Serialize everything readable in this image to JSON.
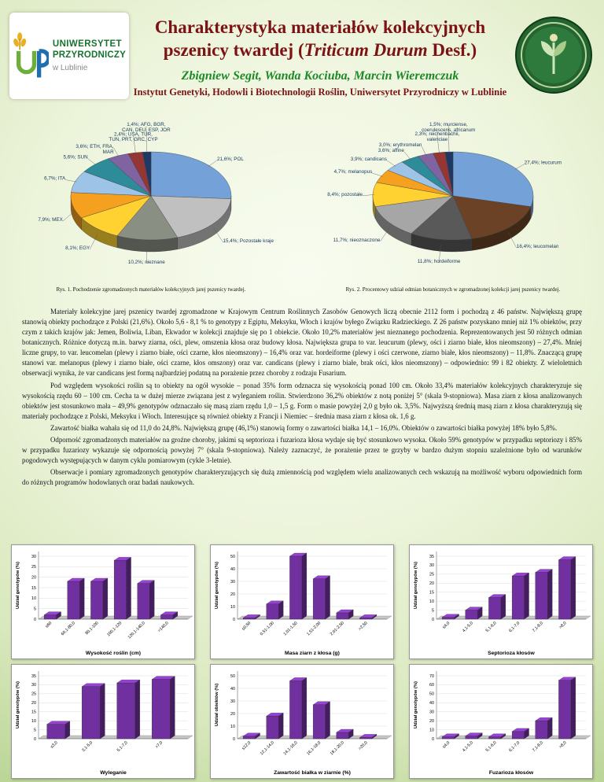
{
  "header": {
    "title_line1": "Charakterystyka materiałów kolekcyjnych",
    "title_line2_pre": "pszenicy twardej (",
    "title_line2_italic": "Triticum Durum",
    "title_line2_post": " Desf.)",
    "authors": "Zbigniew Segit, Wanda Kociuba, Marcin Wieremczuk",
    "institute": "Instytut Genetyki, Hodowli i Biotechnologii Roślin, Uniwersytet Przyrodniczy w Lublinie",
    "logo_left": {
      "line1": "UNIWERSYTET",
      "line2": "PRZYRODNICZY",
      "line3": "w Lublinie"
    }
  },
  "body": {
    "paragraphs": [
      "Materiały kolekcyjne jarej pszenicy twardej zgromadzone w Krajowym Centrum Roślinnych Zasobów Genowych liczą obecnie 2112 form i pochodzą z 46 państw. Największą grupę stanowią obiekty pochodzące z Polski (21,6%). Około 5,6 - 8,1 % to genotypy z Egiptu, Meksyku, Włoch i krajów byłego Związku Radzieckiego. Z 26 państw pozyskano mniej niż 1% obiektów, przy czym z takich krajów jak: Jemen, Boliwia, Liban, Ekwador w kolekcji znajduje się po 1 obiekcie. Około 10,2% materiałów jest nieznanego pochodzenia. Reprezentowanych jest 50 różnych odmian botanicznych. Różnice dotyczą m.in. barwy ziarna, ości, plew, omszenia kłosa oraz budowy kłosa. Największa grupa to var. leucurum (plewy, ości i ziarno białe, kłos nieomszony) – 27,4%. Mniej liczne grupy, to var. leucomelan (plewy i ziarno białe, ości czarne, kłos nieomszony) – 16,4% oraz var. hordeiforme (plewy i ości czerwone, ziarno białe, kłos nieomszony) – 11,8%. Znaczącą grupę stanowi var. melanopus (plewy i ziarno białe, ości czarne, kłos omszony) oraz var. candicans (plewy i ziarno białe, brak ości, kłos nieomszony) – odpowiednio: 99 i 82 obiekty. Z wieloletnich obserwacji wynika, że var candicans jest formą najbardziej podatną na porażenie przez choroby z rodzaju Fusarium.",
      "Pod względem wysokości roślin są to obiekty na ogół wysokie – ponad 35% form odznacza się wysokością ponad 100 cm. Około 33,4% materiałów kolekcyjnych charakteryzuje się wysokością rzędu 60 – 100 cm. Cecha ta w dużej mierze związana jest z wyleganiem roślin. Stwierdzono 36,2% obiektów z notą poniżej 5° (skala 9-stopniowa). Masa ziarn z kłosa analizowanych obiektów jest stosunkowo mała – 49,9% genotypów odznaczało się masą ziarn rzędu 1,0 – 1,5 g. Form o masie powyżej 2,0 g było ok. 3,5%. Najwyższą średnią masą ziarn z kłosa charakteryzują się materiały pochodzące z Polski, Meksyku i Włoch. Interesujące są również obiekty z Francji i Niemiec – średnia masa ziarn z kłosa ok. 1,6 g.",
      "Zawartość białka wahała się od 11,0 do 24,8%. Największą grupę (46,1%) stanowią formy o zawartości białka 14,1 – 16,0%. Obiektów o zawartości białka powyżej 18% było 5,8%.",
      "Odporność zgromadzonych materiałów na groźne choroby, jakimi są septorioza i fuzarioza kłosa wydaje się być stosunkowo wysoka. Około 59% genotypów w przypadku septoriozy i 85% w przypadku fuzariozy wykazuje się odpornością powyżej 7° (skala 9-stopniowa). Należy zaznaczyć, że porażenie przez te grzyby w bardzo dużym stopniu uzależnione było od warunków pogodowych występujących w danym cyklu pomiarowym (cykle 3-letnie).",
      "Obserwacje i pomiary zgromadzonych genotypów charakteryzujących się dużą zmiennością pod względem wielu analizowanych cech wskazują na możliwość wyboru odpowiednich form do różnych programów hodowlanych oraz badań naukowych."
    ]
  },
  "chart_data": [
    {
      "id": "pie-origin",
      "type": "pie",
      "caption": "Rys. 1. Pochodzenie zgromadzonych materiałów kolekcyjnych jarej pszenicy twardej.",
      "slices": [
        {
          "label": "21,6%; POL",
          "value": 21.6,
          "color": "#74a1d8"
        },
        {
          "label": "15,4%; Pozostałe kraje",
          "value": 15.4,
          "color": "#c0c0c0"
        },
        {
          "label": "10,2%; nieznane",
          "value": 10.2,
          "color": "#8a8f84"
        },
        {
          "label": "8,1%; EGY",
          "value": 8.1,
          "color": "#ffd232"
        },
        {
          "label": "7,9%; MEX",
          "value": 7.9,
          "color": "#f5a01e"
        },
        {
          "label": "6,7%; ITA",
          "value": 6.7,
          "color": "#9dc3e6"
        },
        {
          "label": "5,6%; SUN",
          "value": 5.6,
          "color": "#2e8b9a"
        },
        {
          "label": [
            "3,6%; ETH, FRA,",
            "MAR"
          ],
          "value": 3.6,
          "color": "#8064a2"
        },
        {
          "label": [
            "2,4%; USA, TUR,",
            "TUN, PRT, GRC, CYP"
          ],
          "value": 2.4,
          "color": "#943634"
        },
        {
          "label": [
            "1,4%; AFG, BGR,",
            "CAN, DEU, ESP, JOR"
          ],
          "value": 1.4,
          "color": "#1f3864"
        }
      ]
    },
    {
      "id": "pie-botanical",
      "type": "pie",
      "caption": "Rys. 2. Procentowy udział odmian botanicznych w zgromadzonej kolekcji jarej pszenicy twardej.",
      "slices": [
        {
          "label": "27,4%; leucurum",
          "value": 27.4,
          "color": "#74a1d8"
        },
        {
          "label": "16,4%; leucomelan",
          "value": 16.4,
          "color": "#6b4226"
        },
        {
          "label": "11,8%; hordeiforme",
          "value": 11.8,
          "color": "#595959"
        },
        {
          "label": "11,7%; nieoznaczone",
          "value": 11.7,
          "color": "#a6a6a6"
        },
        {
          "label": "8,4%; pozostałe",
          "value": 8.4,
          "color": "#ffd232"
        },
        {
          "label": "4,7%; melanopus",
          "value": 4.7,
          "color": "#f5a01e"
        },
        {
          "label": "3,9%; candicans",
          "value": 3.9,
          "color": "#9dc3e6"
        },
        {
          "label": "3,6%; affine",
          "value": 3.6,
          "color": "#2e8b9a"
        },
        {
          "label": "3,0%; erythromelan",
          "value": 3.0,
          "color": "#8064a2"
        },
        {
          "label": [
            "2,3%; reichenbachii,",
            "valenciae"
          ],
          "value": 2.3,
          "color": "#943634"
        },
        {
          "label": [
            "1,5%; murciense,",
            "coerulescens, africanum"
          ],
          "value": 1.5,
          "color": "#1f3864"
        }
      ]
    },
    {
      "id": "bar-height",
      "type": "bar",
      "ylabel": "Udział genotypów (%)",
      "xlabel": "Wysokość roślin (cm)",
      "ymax": 30,
      "ystep": 5,
      "bar_color": "#7030a0",
      "categories": [
        "≤60",
        "60,1-80,0",
        "80,1-100",
        "100,1-120",
        "120,1-140,0",
        ">140,0"
      ],
      "values": [
        2,
        18,
        18,
        28,
        17,
        2
      ]
    },
    {
      "id": "bar-mass",
      "type": "bar",
      "ylabel": "Udział genotypów (%)",
      "xlabel": "Masa ziarn z kłosa (g)",
      "ymax": 50,
      "ystep": 10,
      "bar_color": "#7030a0",
      "categories": [
        "≤0,50",
        "0,51-1,00",
        "1,01-1,50",
        "1,51-2,00",
        "2,01-2,50",
        ">2,50"
      ],
      "values": [
        1,
        12,
        50,
        32,
        5,
        1
      ]
    },
    {
      "id": "bar-septoria",
      "type": "bar",
      "ylabel": "Udział genotypów (%)",
      "xlabel": "Septorioza kłosów",
      "ymax": 35,
      "ystep": 5,
      "bar_color": "#7030a0",
      "categories": [
        "≤4,0",
        "4,1-5,0",
        "5,1-6,0",
        "6,1-7,0",
        "7,1-8,0",
        ">8,0"
      ],
      "values": [
        1,
        5,
        12,
        24,
        26,
        33
      ]
    },
    {
      "id": "bar-lodging",
      "type": "bar",
      "ylabel": "Udział genotypów (%)",
      "xlabel": "Wyleganie",
      "ymax": 35,
      "ystep": 5,
      "bar_color": "#7030a0",
      "categories": [
        "≤3,0",
        "3,1-5,0",
        "5,1-7,0",
        ">7,0"
      ],
      "values": [
        8,
        29,
        31,
        33
      ]
    },
    {
      "id": "bar-protein",
      "type": "bar",
      "ylabel": "Udział obiektów (%)",
      "xlabel": "Zawartość białka w ziarnie (%)",
      "ymax": 50,
      "ystep": 10,
      "bar_color": "#7030a0",
      "categories": [
        "≤12,0",
        "12,1-14,0",
        "14,1-16,0",
        "16,1-18,0",
        "18,1-20,0",
        ">20,0"
      ],
      "values": [
        2,
        18,
        46,
        27,
        5,
        1
      ]
    },
    {
      "id": "bar-fusarium",
      "type": "bar",
      "ylabel": "Udział genotypów (%)",
      "xlabel": "Fuzarioza kłosów",
      "ymax": 70,
      "ystep": 10,
      "bar_color": "#7030a0",
      "categories": [
        "≤4,0",
        "4,1-5,0",
        "5,1-6,0",
        "6,1-7,0",
        "7,1-8,0",
        ">8,0"
      ],
      "values": [
        2,
        3,
        2,
        8,
        20,
        65
      ]
    }
  ]
}
